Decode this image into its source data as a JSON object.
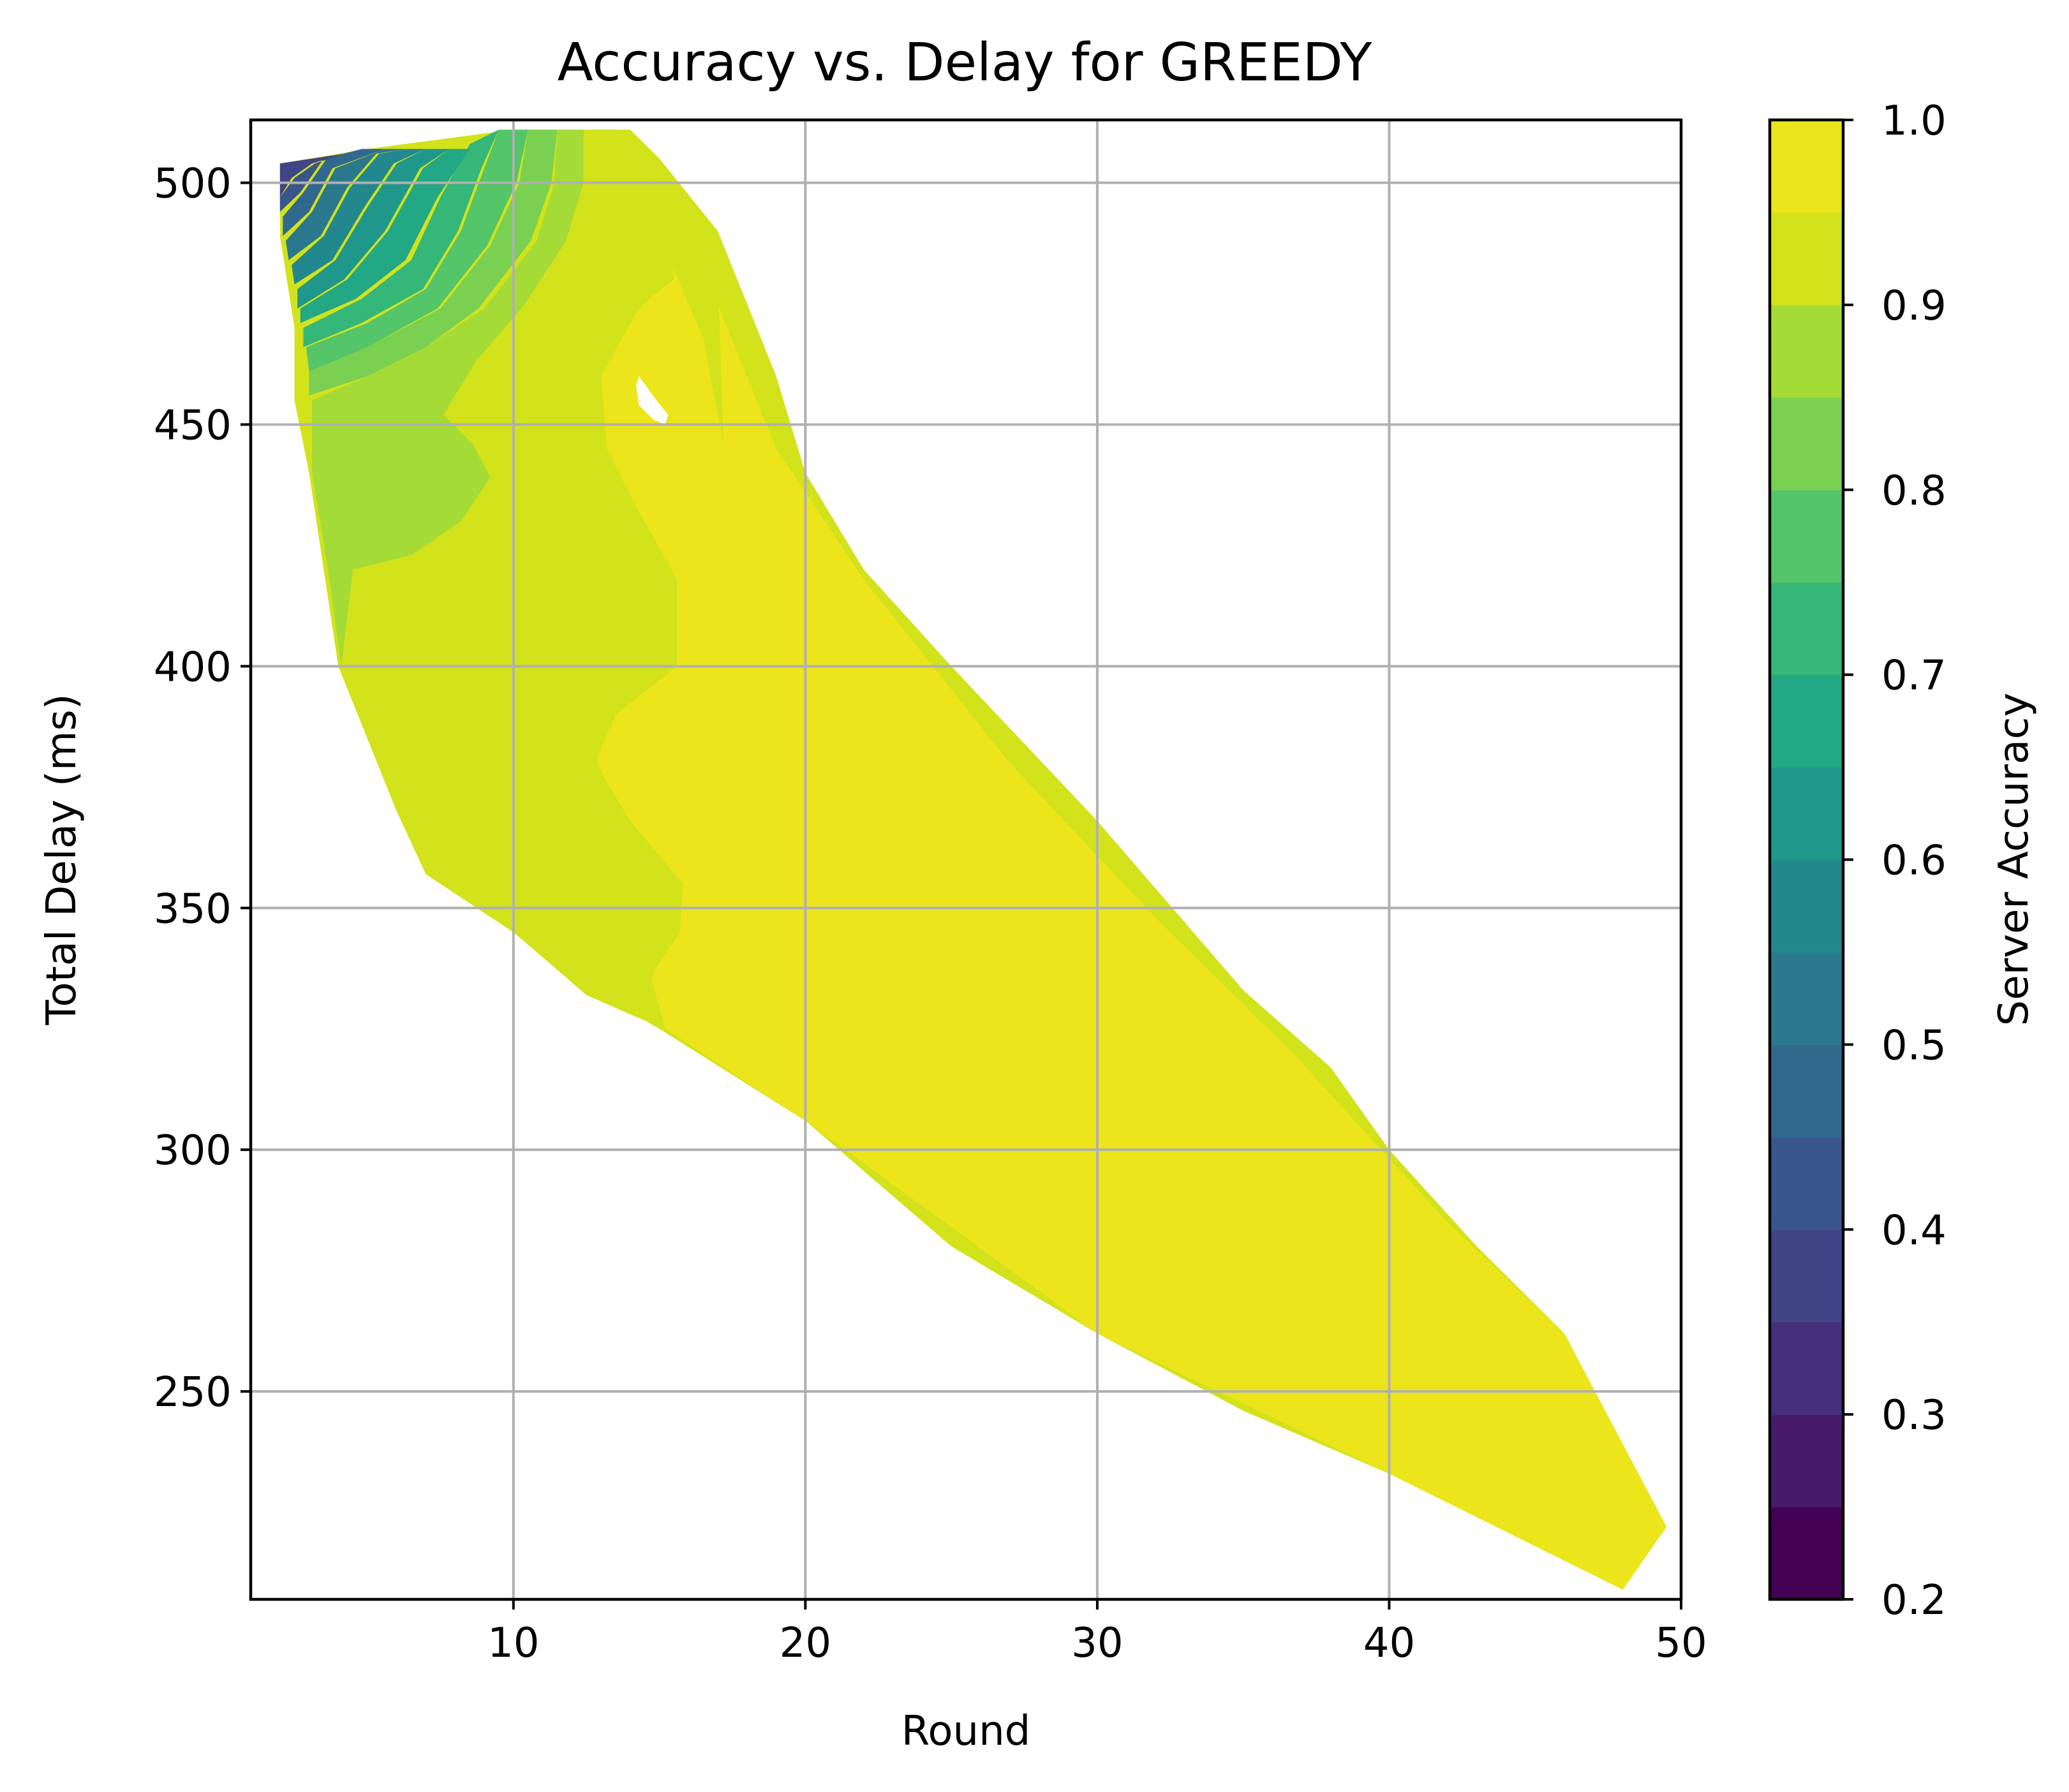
{
  "chart_data": {
    "type": "contour",
    "title": "Accuracy vs. Delay for GREEDY",
    "xlabel": "Round",
    "ylabel": "Total Delay (ms)",
    "xlim": [
      1,
      50
    ],
    "ylim": [
      207,
      513
    ],
    "xticks": [
      10,
      20,
      30,
      40,
      50
    ],
    "yticks": [
      250,
      300,
      350,
      400,
      450,
      500
    ],
    "grid": true,
    "colormap": "viridis",
    "colorbar": {
      "label": "Server Accuracy",
      "range": [
        0.2,
        1.0
      ],
      "levels": [
        0.2,
        0.25,
        0.3,
        0.35,
        0.4,
        0.45,
        0.5,
        0.55,
        0.6,
        0.65,
        0.7,
        0.75,
        0.8,
        0.85,
        0.9,
        0.95,
        1.0
      ],
      "ticks": [
        0.2,
        0.3,
        0.4,
        0.5,
        0.6,
        0.7,
        0.8,
        0.9,
        1.0
      ],
      "tick_labels": [
        "0.2",
        "0.3",
        "0.4",
        "0.5",
        "0.6",
        "0.7",
        "0.8",
        "0.9",
        "1.0"
      ],
      "colors": [
        "#440154",
        "#481a6c",
        "#472f7d",
        "#414487",
        "#39568c",
        "#31688e",
        "#2a788e",
        "#23888e",
        "#1f988b",
        "#22a884",
        "#35b779",
        "#54c568",
        "#7ad151",
        "#a5db36",
        "#d2e21b",
        "#ece51b"
      ]
    },
    "data_region_boundary": [
      [
        2,
        504
      ],
      [
        5,
        507
      ],
      [
        10,
        511
      ],
      [
        14,
        511
      ],
      [
        15,
        505
      ],
      [
        17,
        490
      ],
      [
        19,
        460
      ],
      [
        20,
        440
      ],
      [
        22,
        420
      ],
      [
        25,
        400
      ],
      [
        30,
        368
      ],
      [
        35,
        333
      ],
      [
        38,
        317
      ],
      [
        40,
        300
      ],
      [
        43,
        280
      ],
      [
        46,
        262
      ],
      [
        49.5,
        222
      ],
      [
        48,
        209
      ],
      [
        46,
        215
      ],
      [
        43,
        224
      ],
      [
        40,
        233
      ],
      [
        35,
        246
      ],
      [
        30,
        262
      ],
      [
        25,
        280
      ],
      [
        20,
        306
      ],
      [
        15,
        325
      ],
      [
        13,
        332
      ],
      [
        10,
        345
      ],
      [
        7,
        357
      ],
      [
        6,
        370
      ],
      [
        5,
        385
      ],
      [
        4,
        400
      ],
      [
        3.5,
        420
      ],
      [
        3,
        440
      ],
      [
        2.5,
        455
      ],
      [
        2.5,
        470
      ],
      [
        2,
        489
      ],
      [
        2,
        504
      ]
    ],
    "contour_regions": [
      {
        "level": "0.95-1.0",
        "points": [
          [
            13.7,
            510
          ],
          [
            14.5,
            504
          ],
          [
            15.3,
            493
          ],
          [
            17,
            475
          ],
          [
            19,
            445
          ],
          [
            22,
            418
          ],
          [
            27,
            380
          ],
          [
            32,
            348
          ],
          [
            37,
            318
          ],
          [
            42,
            285
          ],
          [
            46,
            262
          ],
          [
            49.5,
            222
          ],
          [
            48,
            209
          ],
          [
            40,
            233
          ],
          [
            30,
            262
          ],
          [
            20,
            306
          ],
          [
            15.2,
            325
          ],
          [
            14.7,
            335
          ],
          [
            15.5,
            347
          ],
          [
            15.5,
            355
          ],
          [
            13.5,
            372
          ],
          [
            12.5,
            385
          ],
          [
            13,
            395
          ],
          [
            14.8,
            405
          ],
          [
            15,
            418
          ],
          [
            14,
            432
          ],
          [
            13,
            445
          ],
          [
            12.8,
            460
          ],
          [
            14,
            473
          ],
          [
            15.5,
            480
          ],
          [
            15,
            495
          ],
          [
            14.2,
            505
          ]
        ]
      },
      {
        "level": "0.90-0.95",
        "points": [
          [
            12.5,
            511
          ],
          [
            13.7,
            511
          ],
          [
            14.5,
            505
          ],
          [
            15.3,
            493
          ],
          [
            17,
            480
          ],
          [
            17.2,
            446
          ],
          [
            16.5,
            468
          ],
          [
            15.5,
            482
          ],
          [
            14.2,
            473
          ],
          [
            13,
            460
          ],
          [
            13.2,
            445
          ],
          [
            14.2,
            433
          ],
          [
            15.6,
            418
          ],
          [
            15.6,
            400
          ],
          [
            13.5,
            390
          ],
          [
            12.8,
            380
          ],
          [
            14,
            368
          ],
          [
            15.8,
            355
          ],
          [
            15.7,
            345
          ],
          [
            14.7,
            336
          ],
          [
            15.2,
            325
          ],
          [
            14,
            328
          ],
          [
            12.5,
            332
          ],
          [
            10,
            345
          ],
          [
            7,
            357
          ],
          [
            6,
            370
          ],
          [
            5,
            385
          ],
          [
            4.3,
            402
          ],
          [
            4.6,
            420
          ],
          [
            6.5,
            423
          ],
          [
            8.2,
            430
          ],
          [
            9.3,
            439
          ],
          [
            8.5,
            446
          ],
          [
            7.8,
            452
          ],
          [
            8.8,
            462
          ],
          [
            10.5,
            474
          ],
          [
            12,
            488
          ],
          [
            12.5,
            500
          ]
        ]
      },
      {
        "level": "0.85-0.90",
        "points": [
          [
            11.5,
            511
          ],
          [
            12.4,
            511
          ],
          [
            12.4,
            500
          ],
          [
            11.8,
            488
          ],
          [
            10.4,
            475
          ],
          [
            8.7,
            463
          ],
          [
            7.6,
            452
          ],
          [
            8.6,
            446
          ],
          [
            9.2,
            439
          ],
          [
            8.2,
            430
          ],
          [
            6.5,
            423
          ],
          [
            4.5,
            420
          ],
          [
            4.1,
            400
          ],
          [
            3.7,
            418
          ],
          [
            3.1,
            440
          ],
          [
            3.1,
            455
          ],
          [
            5,
            460
          ],
          [
            7,
            466
          ],
          [
            9,
            474
          ],
          [
            10.8,
            488
          ],
          [
            11.4,
            500
          ]
        ]
      },
      {
        "level": "0.80-0.85",
        "points": [
          [
            10.5,
            511
          ],
          [
            11.5,
            511
          ],
          [
            11.3,
            500
          ],
          [
            10.6,
            488
          ],
          [
            8.8,
            474
          ],
          [
            7,
            466
          ],
          [
            5,
            460
          ],
          [
            3,
            456
          ],
          [
            3,
            461
          ],
          [
            5,
            466
          ],
          [
            7.5,
            474
          ],
          [
            9.2,
            487
          ],
          [
            10.2,
            500
          ]
        ]
      },
      {
        "level": "0.75-0.80",
        "points": [
          [
            9.5,
            511
          ],
          [
            10.5,
            511
          ],
          [
            10.1,
            500
          ],
          [
            9.1,
            487
          ],
          [
            7.4,
            474
          ],
          [
            5,
            466
          ],
          [
            3,
            461
          ],
          [
            2.9,
            466
          ],
          [
            5,
            471
          ],
          [
            7,
            478
          ],
          [
            8.2,
            490
          ],
          [
            9,
            503
          ]
        ]
      },
      {
        "level": "0.70-0.75",
        "points": [
          [
            8.5,
            508
          ],
          [
            9.5,
            511
          ],
          [
            8.9,
            503
          ],
          [
            8.1,
            490
          ],
          [
            6.9,
            478
          ],
          [
            4.8,
            471
          ],
          [
            2.8,
            466
          ],
          [
            2.8,
            470
          ],
          [
            4.8,
            476
          ],
          [
            6.5,
            484
          ],
          [
            7.5,
            497
          ]
        ]
      },
      {
        "level": "0.65-0.70",
        "points": [
          [
            7.8,
            507
          ],
          [
            8.5,
            507
          ],
          [
            7.4,
            497
          ],
          [
            6.3,
            484
          ],
          [
            4.6,
            476
          ],
          [
            2.7,
            471
          ],
          [
            2.7,
            474
          ],
          [
            4.3,
            480
          ],
          [
            5.7,
            490
          ],
          [
            6.9,
            503
          ]
        ]
      },
      {
        "level": "0.60-0.65",
        "points": [
          [
            7,
            507
          ],
          [
            7.8,
            507
          ],
          [
            6.8,
            503
          ],
          [
            5.6,
            490
          ],
          [
            4.2,
            480
          ],
          [
            2.6,
            474
          ],
          [
            2.6,
            478
          ],
          [
            3.9,
            484
          ],
          [
            5,
            495
          ],
          [
            6,
            504
          ]
        ]
      },
      {
        "level": "0.55-0.60",
        "points": [
          [
            6.3,
            507
          ],
          [
            7,
            507
          ],
          [
            5.9,
            504
          ],
          [
            4.9,
            495
          ],
          [
            3.8,
            484
          ],
          [
            2.5,
            479
          ],
          [
            2.4,
            483
          ],
          [
            3.5,
            489
          ],
          [
            4.4,
            499
          ],
          [
            5.4,
            506
          ]
        ]
      },
      {
        "level": "0.50-0.55",
        "points": [
          [
            5.6,
            507
          ],
          [
            6.3,
            507
          ],
          [
            5.3,
            506
          ],
          [
            4.3,
            499
          ],
          [
            3.4,
            489
          ],
          [
            2.3,
            484
          ],
          [
            2.2,
            488
          ],
          [
            3.1,
            494
          ],
          [
            3.9,
            503
          ]
        ]
      },
      {
        "level": "0.45-0.50",
        "points": [
          [
            4.8,
            507
          ],
          [
            5.6,
            507
          ],
          [
            3.8,
            503
          ],
          [
            3,
            494
          ],
          [
            2.1,
            489
          ],
          [
            2.1,
            493
          ],
          [
            2.8,
            498
          ],
          [
            3.6,
            505
          ]
        ]
      },
      {
        "level": "0.40-0.45",
        "points": [
          [
            4.2,
            506
          ],
          [
            4.8,
            507
          ],
          [
            3.5,
            505
          ],
          [
            2.7,
            498
          ],
          [
            2,
            494
          ],
          [
            2,
            497
          ],
          [
            2.5,
            501
          ],
          [
            3.2,
            504
          ]
        ]
      },
      {
        "level": "0.35-0.40",
        "points": [
          [
            2,
            504
          ],
          [
            4.2,
            506
          ],
          [
            3.1,
            504
          ],
          [
            2.4,
            501
          ],
          [
            2,
            497
          ]
        ]
      }
    ],
    "holes": [
      [
        [
          14.3,
          460
        ],
        [
          14.9,
          455
        ],
        [
          15.3,
          452
        ],
        [
          15.2,
          450
        ],
        [
          14.8,
          451
        ],
        [
          14.3,
          454
        ],
        [
          14.2,
          458
        ]
      ]
    ]
  }
}
